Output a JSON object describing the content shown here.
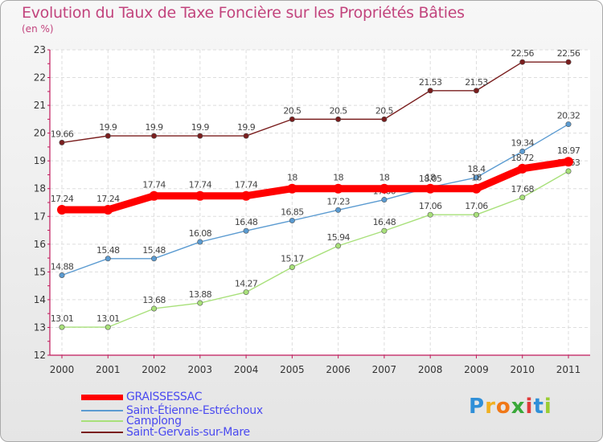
{
  "chart_data": {
    "type": "line",
    "title": "Evolution du Taux de Taxe Foncière sur les Propriétés Bâties",
    "ylabel": "(en %)",
    "xlabel": "",
    "ylim": [
      12,
      23
    ],
    "yticks": [
      "12",
      "13",
      "14",
      "15",
      "16",
      "17",
      "18",
      "19",
      "20",
      "21",
      "22",
      "23"
    ],
    "categories": [
      "2000",
      "2001",
      "2002",
      "2003",
      "2004",
      "2005",
      "2006",
      "2007",
      "2008",
      "2009",
      "2010",
      "2011"
    ],
    "series": [
      {
        "name": "Saint-Gervais-sur-Mare",
        "color": "#7a1e1e",
        "values": [
          19.66,
          19.9,
          19.9,
          19.9,
          19.9,
          20.5,
          20.5,
          20.5,
          21.53,
          21.53,
          22.56,
          22.56
        ],
        "labels": [
          "19.66",
          "19.9",
          "19.9",
          "19.9",
          "19.9",
          "20.5",
          "20.5",
          "20.5",
          "21.53",
          "21.53",
          "22.56",
          "22.56"
        ]
      },
      {
        "name": "Saint-Étienne-Estréchoux",
        "color": "#5b9bd1",
        "values": [
          14.88,
          15.48,
          15.48,
          16.08,
          16.48,
          16.85,
          17.23,
          17.6,
          18.05,
          18.4,
          19.34,
          20.32
        ],
        "labels": [
          "14.88",
          "15.48",
          "15.48",
          "16.08",
          "16.48",
          "16.85",
          "17.23",
          "17.60",
          "18.05",
          "18.4",
          "19.34",
          "20.32"
        ]
      },
      {
        "name": "Camplong",
        "color": "#a8e07a",
        "values": [
          13.01,
          13.01,
          13.68,
          13.88,
          14.27,
          15.17,
          15.94,
          16.48,
          17.06,
          17.06,
          17.68,
          18.63
        ],
        "labels": [
          "13.01",
          "13.01",
          "13.68",
          "13.88",
          "14.27",
          "15.17",
          "15.94",
          "16.48",
          "17.06",
          "17.06",
          "17.68",
          "18.63"
        ]
      },
      {
        "name": "GRAISSESSAC",
        "color": "#ff0000",
        "values": [
          17.24,
          17.24,
          17.74,
          17.74,
          17.74,
          18,
          18,
          18,
          18,
          18,
          18.72,
          18.97
        ],
        "labels": [
          "17.24",
          "17.24",
          "17.74",
          "17.74",
          "17.74",
          "18",
          "18",
          "18",
          "18",
          "18",
          "18.72",
          "18.97"
        ]
      }
    ],
    "legend": [
      "GRAISSESSAC",
      "Saint-Étienne-Estréchoux",
      "Camplong",
      "Saint-Gervais-sur-Mare"
    ],
    "grid": true,
    "legend_position": "bottom-left"
  },
  "logo": {
    "letters": [
      "P",
      "r",
      "o",
      "x",
      "i",
      "t",
      "i"
    ],
    "colors": [
      "#2f8fd8",
      "#f0b020",
      "#f07818",
      "#3aa83a",
      "#e03a3a",
      "#2f8fd8",
      "#9acd32"
    ]
  }
}
